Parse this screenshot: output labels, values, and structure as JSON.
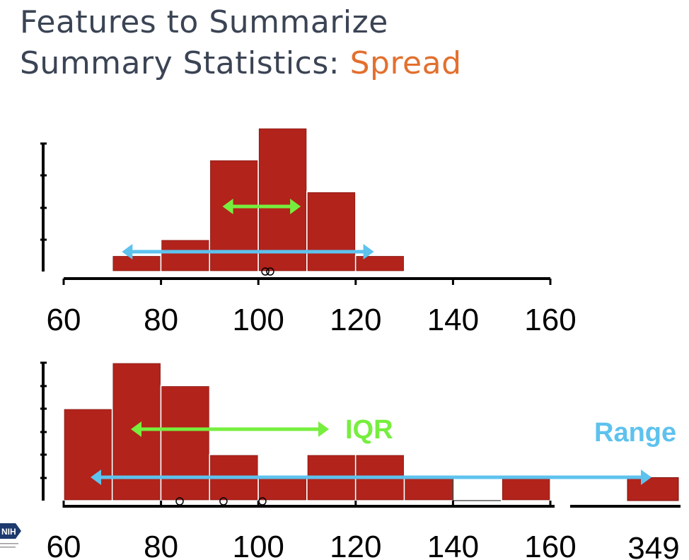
{
  "title_line1": "Features to Summarize",
  "title_line2_prefix": "Summary Statistics: ",
  "title_line2_accent": "Spread",
  "colors": {
    "bar": "#b2231b",
    "iqr": "#76ee3e",
    "range": "#5ec2ee",
    "title": "#3b4454",
    "accent": "#e2702e"
  },
  "logo": {
    "icon": "nih-logo-icon",
    "text": "NIH",
    "sub": "National Institutes of Health"
  },
  "chart_data": [
    {
      "type": "histogram",
      "bin_width": 10,
      "bins": [
        {
          "start": 70,
          "end": 80,
          "count": 0.5
        },
        {
          "start": 80,
          "end": 90,
          "count": 1
        },
        {
          "start": 90,
          "end": 100,
          "count": 3.5
        },
        {
          "start": 100,
          "end": 110,
          "count": 4.5
        },
        {
          "start": 110,
          "end": 120,
          "count": 2.5
        },
        {
          "start": 120,
          "end": 130,
          "count": 0.5
        }
      ],
      "xlim": [
        60,
        160
      ],
      "ylim": [
        0,
        4.5
      ],
      "x_ticks": [
        "60",
        "80",
        "100",
        "120",
        "140",
        "160"
      ],
      "iqr": [
        97,
        109
      ],
      "range": [
        74,
        122
      ],
      "markers": [
        101,
        102
      ]
    },
    {
      "type": "histogram",
      "bin_width": 10,
      "bins": [
        {
          "start": 60,
          "end": 70,
          "count": 4
        },
        {
          "start": 70,
          "end": 80,
          "count": 6
        },
        {
          "start": 80,
          "end": 90,
          "count": 5
        },
        {
          "start": 90,
          "end": 100,
          "count": 2
        },
        {
          "start": 100,
          "end": 110,
          "count": 1
        },
        {
          "start": 110,
          "end": 120,
          "count": 2
        },
        {
          "start": 120,
          "end": 130,
          "count": 2
        },
        {
          "start": 130,
          "end": 140,
          "count": 1
        },
        {
          "start": 140,
          "end": 150,
          "count": 1,
          "empty": true
        },
        {
          "start": 150,
          "end": 160,
          "count": 1
        }
      ],
      "outlier": {
        "value": 349,
        "count": 1
      },
      "xlim": [
        60,
        160
      ],
      "ylim": [
        0,
        6
      ],
      "x_ticks": [
        "60",
        "80",
        "100",
        "120",
        "140",
        "160",
        "349"
      ],
      "iqr": [
        74,
        111
      ],
      "range": [
        65,
        349
      ],
      "markers": [
        85,
        94,
        102
      ],
      "iqr_label": "IQR",
      "range_label": "Range"
    }
  ]
}
